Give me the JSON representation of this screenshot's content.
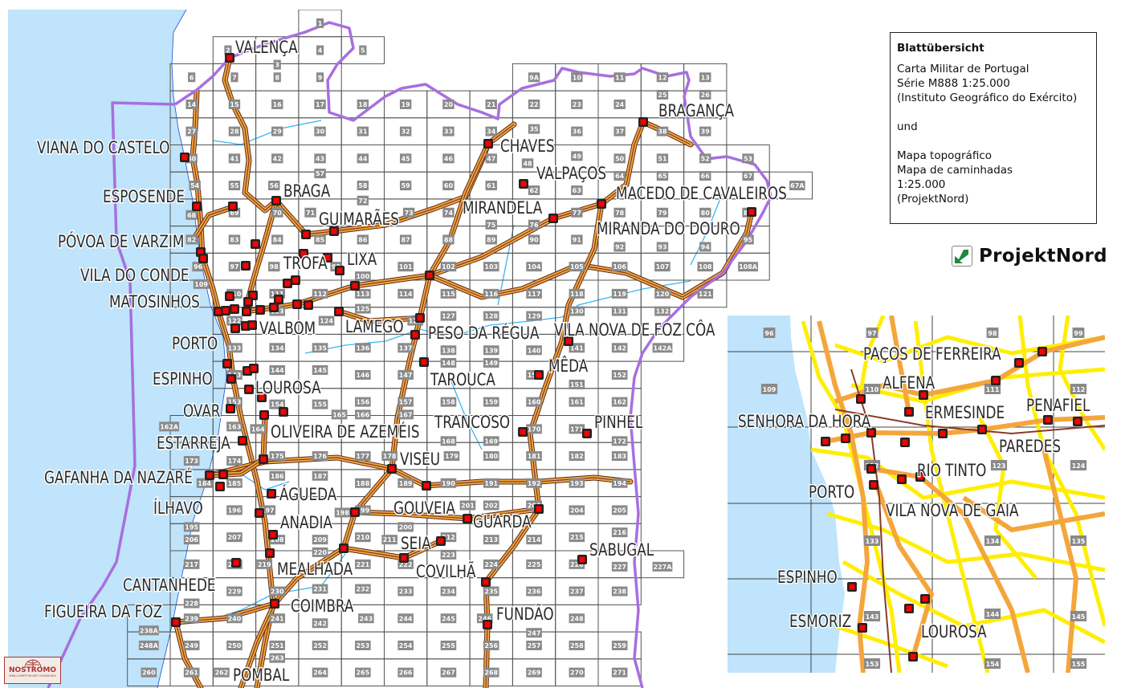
{
  "legend": {
    "title": "Blattübersicht",
    "lines": [
      "Carta Militar de Portugal",
      "Série M888 1:25.000",
      "(Instituto Geográfico do Exército)",
      "",
      "und",
      "",
      "Mapa topográfico",
      "Mapa de caminhadas",
      "1:25.000",
      "(ProjektNord)"
    ]
  },
  "brand": {
    "name": "ProjektNord",
    "icon": "green-arrow-icon",
    "color": "#1e8a3a"
  },
  "watermark": {
    "name": "NOSTROMO",
    "tagline": "WEB-COMPTOIR DES VOYAGEURS"
  },
  "colors": {
    "sea": "#bfe4fb",
    "road": "#f4a63c",
    "road_core": "#7a3b2a",
    "border": "#a76fe0",
    "river": "#38b6f0",
    "town_marker": "#ff0000",
    "sheet_label_bg": "#8a8a8a",
    "inset_minor_road": "#ffee00"
  },
  "sheet_grid": {
    "rows": [
      {
        "start": 3,
        "sheets": [
          "1"
        ]
      },
      {
        "start": 1,
        "sheets": [
          "2",
          "3",
          "4",
          "5"
        ]
      },
      {
        "start": 0,
        "sheets": [
          "6",
          "7",
          "8",
          "9",
          null,
          null,
          null,
          null,
          "9A",
          "10",
          "11",
          "12",
          "13"
        ]
      },
      {
        "start": 0,
        "sheets": [
          "14",
          "15",
          "16",
          "17",
          "18",
          "19",
          "20",
          "21",
          "22",
          "23",
          "24",
          "25",
          "26"
        ]
      },
      {
        "start": 0,
        "sheets": [
          "27",
          "28",
          "29",
          "30",
          "31",
          "32",
          "33",
          "34",
          "35",
          "36",
          "37",
          "38",
          "39"
        ]
      },
      {
        "start": 0,
        "sheets": [
          "40",
          "41",
          "42",
          "43",
          "44",
          "45",
          "46",
          "47",
          "48",
          "49",
          "50",
          "51",
          "52",
          "53"
        ]
      },
      {
        "start": 0,
        "sheets": [
          "54",
          "55",
          "56",
          "57",
          "58",
          "59",
          "60",
          "61",
          "62",
          "63",
          "64",
          "65",
          "66",
          "67",
          "67A"
        ]
      },
      {
        "start": 0,
        "sheets": [
          "68",
          "69",
          "70",
          "71",
          "72",
          "73",
          "74",
          "75",
          "76",
          "77",
          "78",
          "79",
          "80",
          "81"
        ]
      },
      {
        "start": 0,
        "sheets": [
          "82",
          "83",
          "84",
          "85",
          "86",
          "87",
          "88",
          "89",
          "90",
          "91",
          "92",
          "93",
          "94",
          "95"
        ]
      },
      {
        "start": 0,
        "sheets": [
          "96",
          "97",
          "98",
          "99",
          "100",
          "101",
          "102",
          "103",
          "104",
          "105",
          "106",
          "107",
          "108",
          "108A"
        ]
      },
      {
        "start": 0,
        "sheets": [
          "109",
          "110",
          "111",
          "112",
          "113",
          "114",
          "115",
          "116",
          "117",
          "118",
          "119",
          "120",
          "121"
        ]
      },
      {
        "start": 1,
        "sheets": [
          "122",
          "123",
          "124",
          "125",
          "126",
          "127",
          "128",
          "129",
          "130",
          "131",
          "132"
        ]
      },
      {
        "start": 1,
        "sheets": [
          "133",
          "134",
          "135",
          "136",
          "137",
          "138",
          "139",
          "140",
          "141",
          "142",
          "142A"
        ]
      },
      {
        "start": 1,
        "sheets": [
          "143",
          "144",
          "145",
          "146",
          "147",
          "148",
          "149",
          "150",
          "151",
          "152"
        ]
      },
      {
        "start": 1,
        "sheets": [
          "153",
          "154",
          "155",
          "156",
          "157",
          "158",
          "159",
          "160",
          "161",
          "162"
        ]
      },
      {
        "start": 0,
        "sheets": [
          "162A",
          "163",
          "164",
          "165",
          "166",
          "167",
          "168",
          "169",
          "170",
          "171",
          "172"
        ]
      },
      {
        "start": 0,
        "sheets": [
          "173",
          "174",
          "175",
          "176",
          "177",
          "178",
          "179",
          "180",
          "181",
          "182",
          "183"
        ]
      },
      {
        "start": 0,
        "sheets": [
          "184",
          "185",
          "186",
          "187",
          "188",
          "189",
          "190",
          "191",
          "192",
          "193",
          "194"
        ]
      },
      {
        "start": 0,
        "sheets": [
          "195",
          "196",
          "197",
          "198",
          "199",
          "200",
          "201",
          "202",
          "203",
          "204",
          "205"
        ]
      },
      {
        "start": 0,
        "sheets": [
          "206",
          "207",
          "208",
          "209",
          "210",
          "211",
          "212",
          "213",
          "214",
          "215",
          "216"
        ]
      },
      {
        "start": 0,
        "sheets": [
          "217",
          "218",
          "219",
          "220",
          "221",
          "222",
          "223",
          "224",
          "225",
          "226",
          "227",
          "227A"
        ]
      },
      {
        "start": 0,
        "sheets": [
          "228",
          "229",
          "230",
          "231",
          "232",
          "233",
          "234",
          "235",
          "236",
          "237",
          "238"
        ]
      },
      {
        "start": -1,
        "sheets": [
          "238A",
          "239",
          "240",
          "241",
          "242",
          "243",
          "244",
          "245",
          "246",
          "247",
          "248"
        ]
      },
      {
        "start": -1,
        "sheets": [
          "248A",
          "249",
          "250",
          "251",
          "252",
          "253",
          "254",
          "255",
          "256",
          "257",
          "258",
          "259"
        ]
      },
      {
        "start": -1,
        "sheets": [
          "260",
          "261",
          "262",
          "263",
          "264",
          "265",
          "266",
          "267",
          "268",
          "269",
          "270",
          "271"
        ]
      }
    ]
  },
  "towns": [
    "VALENÇA",
    "VIANA DO CASTELO",
    "ESPOSENDE",
    "BRAGA",
    "GUIMARÃES",
    "PÓVOA DE VARZIM",
    "TROFA",
    "LIXA",
    "VILA DO CONDE",
    "MATOSINHOS",
    "VALBOM",
    "LAMEGO",
    "PORTO",
    "PESO DA RÉGUA",
    "VILA NOVA DE FOZ CÔA",
    "CHAVES",
    "VALPAÇOS",
    "BRAGANÇA",
    "MIRANDELA",
    "MACEDO DE CAVALEIROS",
    "MIRANDA DO DOURO",
    "MÊDA",
    "TAROUCA",
    "ESPINHO",
    "LOUROSA",
    "OVAR",
    "OLIVEIRA DE AZEMÉIS",
    "TRANCOSO",
    "PINHEL",
    "ESTARREJA",
    "VISEU",
    "GAFANHA DA NAZARÉ",
    "ÁGUEDA",
    "ÍLHAVO",
    "GOUVEIA",
    "GUARDA",
    "ANADIA",
    "SEIA",
    "SABUGAL",
    "MEALHADA",
    "COVILHÃ",
    "CANTANHEDE",
    "COIMBRA",
    "FUNDÃO",
    "FIGUEIRA DA FOZ",
    "POMBAL"
  ],
  "inset": {
    "sheets": [
      "96",
      "97",
      "98",
      "99",
      "109",
      "110",
      "111",
      "112",
      "122",
      "123",
      "124",
      "133",
      "134",
      "135",
      "143",
      "144",
      "145",
      "153",
      "154",
      "155"
    ],
    "towns": [
      "PAÇOS DE FERREIRA",
      "ALFENA",
      "SENHORA DA HORA",
      "ERMESINDE",
      "PENAFIEL",
      "PAREDES",
      "RIO TINTO",
      "PORTO",
      "VILA NOVA DE GAIA",
      "ESPINHO",
      "ESMORIZ",
      "LOUROSA"
    ]
  }
}
